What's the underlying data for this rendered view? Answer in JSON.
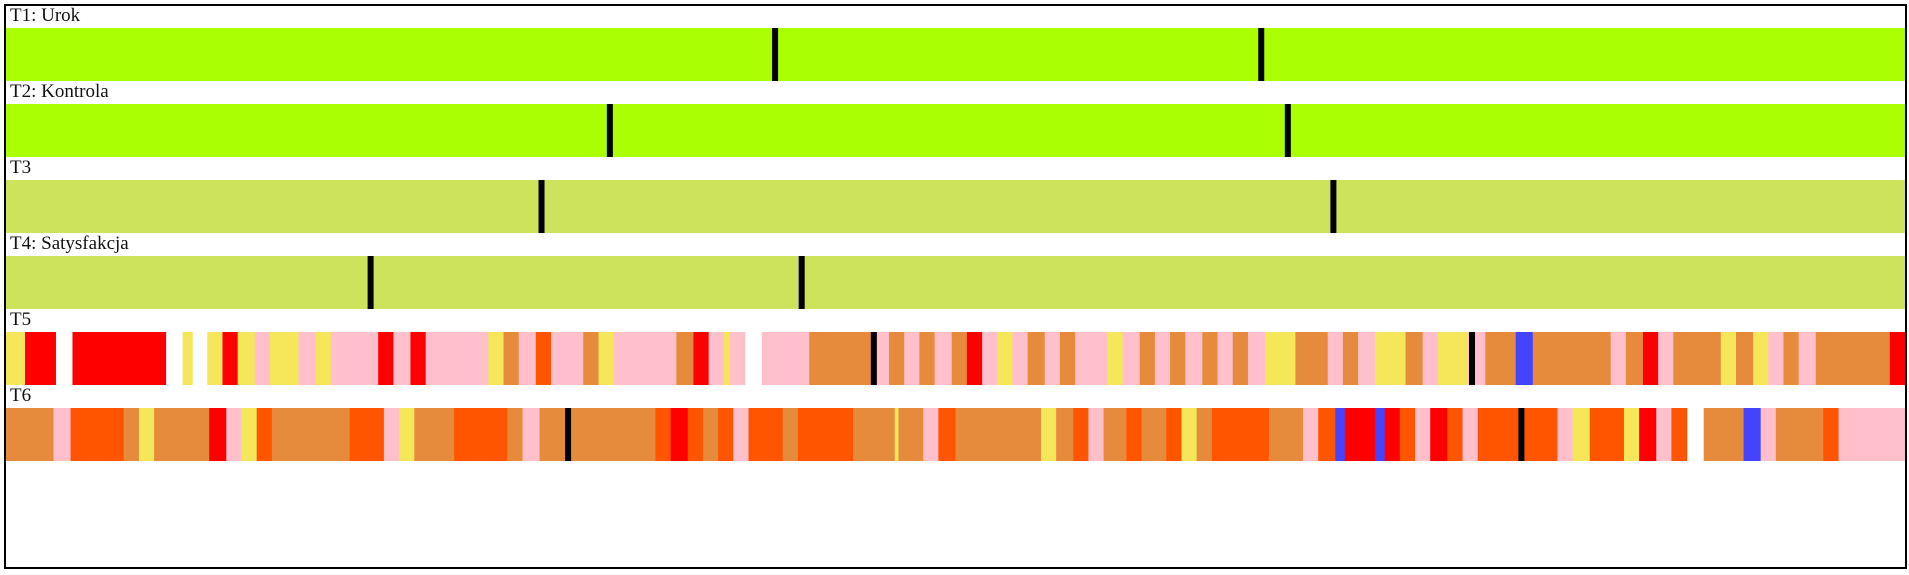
{
  "chart_data": {
    "type": "timeline",
    "x_range": [
      0,
      1
    ],
    "tracks": [
      {
        "id": "T1",
        "label": "T1: Urok",
        "segments": [
          {
            "start": 0,
            "end": 1,
            "color": "#aaff00"
          }
        ],
        "markers": [
          0.405,
          0.661
        ]
      },
      {
        "id": "T2",
        "label": "T2: Kontrola",
        "segments": [
          {
            "start": 0,
            "end": 1,
            "color": "#aaff00"
          }
        ],
        "markers": [
          0.318,
          0.675
        ]
      },
      {
        "id": "T3",
        "label": "T3",
        "segments": [
          {
            "start": 0,
            "end": 1,
            "color": "#cce35b"
          }
        ],
        "markers": [
          0.282,
          0.699
        ]
      },
      {
        "id": "T4",
        "label": "T4: Satysfakcja",
        "segments": [
          {
            "start": 0,
            "end": 1,
            "color": "#cce35b"
          }
        ],
        "markers": [
          0.192,
          0.419
        ]
      },
      {
        "id": "T5",
        "label": "T5",
        "segments": [
          {
            "start": 0.0,
            "end": 0.01,
            "color": "#f5e65a"
          },
          {
            "start": 0.01,
            "end": 0.026,
            "color": "#ff0000"
          },
          {
            "start": 0.035,
            "end": 0.084,
            "color": "#ff0000"
          },
          {
            "start": 0.093,
            "end": 0.098,
            "color": "#f5e65a"
          },
          {
            "start": 0.106,
            "end": 0.114,
            "color": "#f5e65a"
          },
          {
            "start": 0.114,
            "end": 0.122,
            "color": "#ff0000"
          },
          {
            "start": 0.122,
            "end": 0.131,
            "color": "#f5e65a"
          },
          {
            "start": 0.131,
            "end": 0.139,
            "color": "#ffc0cb"
          },
          {
            "start": 0.139,
            "end": 0.154,
            "color": "#f5e65a"
          },
          {
            "start": 0.154,
            "end": 0.163,
            "color": "#ffc0cb"
          },
          {
            "start": 0.163,
            "end": 0.171,
            "color": "#f5e65a"
          },
          {
            "start": 0.171,
            "end": 0.196,
            "color": "#ffc0cb"
          },
          {
            "start": 0.196,
            "end": 0.204,
            "color": "#ff0000"
          },
          {
            "start": 0.204,
            "end": 0.213,
            "color": "#ffc0cb"
          },
          {
            "start": 0.213,
            "end": 0.221,
            "color": "#ff0000"
          },
          {
            "start": 0.221,
            "end": 0.254,
            "color": "#ffc0cb"
          },
          {
            "start": 0.254,
            "end": 0.262,
            "color": "#f5e65a"
          },
          {
            "start": 0.262,
            "end": 0.27,
            "color": "#e68a3c"
          },
          {
            "start": 0.27,
            "end": 0.279,
            "color": "#ffc0cb"
          },
          {
            "start": 0.279,
            "end": 0.287,
            "color": "#ff5500"
          },
          {
            "start": 0.287,
            "end": 0.304,
            "color": "#ffc0cb"
          },
          {
            "start": 0.304,
            "end": 0.312,
            "color": "#e68a3c"
          },
          {
            "start": 0.312,
            "end": 0.32,
            "color": "#f5e65a"
          },
          {
            "start": 0.32,
            "end": 0.353,
            "color": "#ffc0cb"
          },
          {
            "start": 0.353,
            "end": 0.362,
            "color": "#e68a3c"
          },
          {
            "start": 0.362,
            "end": 0.37,
            "color": "#ff0000"
          },
          {
            "start": 0.37,
            "end": 0.378,
            "color": "#ffc0cb"
          },
          {
            "start": 0.378,
            "end": 0.381,
            "color": "#f5e65a"
          },
          {
            "start": 0.381,
            "end": 0.389,
            "color": "#ffc0cb"
          },
          {
            "start": 0.398,
            "end": 0.423,
            "color": "#ffc0cb"
          },
          {
            "start": 0.423,
            "end": 0.456,
            "color": "#e68a3c"
          },
          {
            "start": 0.456,
            "end": 0.465,
            "color": "#ffc0cb"
          },
          {
            "start": 0.465,
            "end": 0.473,
            "color": "#e68a3c"
          },
          {
            "start": 0.473,
            "end": 0.481,
            "color": "#ffc0cb"
          },
          {
            "start": 0.481,
            "end": 0.489,
            "color": "#e68a3c"
          },
          {
            "start": 0.489,
            "end": 0.498,
            "color": "#ffc0cb"
          },
          {
            "start": 0.498,
            "end": 0.506,
            "color": "#e68a3c"
          },
          {
            "start": 0.506,
            "end": 0.514,
            "color": "#ff0000"
          },
          {
            "start": 0.514,
            "end": 0.522,
            "color": "#ffc0cb"
          },
          {
            "start": 0.522,
            "end": 0.53,
            "color": "#f5e65a"
          },
          {
            "start": 0.53,
            "end": 0.538,
            "color": "#ffc0cb"
          },
          {
            "start": 0.538,
            "end": 0.547,
            "color": "#e68a3c"
          },
          {
            "start": 0.547,
            "end": 0.555,
            "color": "#ffc0cb"
          },
          {
            "start": 0.555,
            "end": 0.563,
            "color": "#e68a3c"
          },
          {
            "start": 0.563,
            "end": 0.58,
            "color": "#ffc0cb"
          },
          {
            "start": 0.58,
            "end": 0.588,
            "color": "#f5e65a"
          },
          {
            "start": 0.588,
            "end": 0.597,
            "color": "#ffc0cb"
          },
          {
            "start": 0.597,
            "end": 0.605,
            "color": "#e68a3c"
          },
          {
            "start": 0.605,
            "end": 0.613,
            "color": "#ffc0cb"
          },
          {
            "start": 0.613,
            "end": 0.621,
            "color": "#e68a3c"
          },
          {
            "start": 0.621,
            "end": 0.63,
            "color": "#ffc0cb"
          },
          {
            "start": 0.63,
            "end": 0.638,
            "color": "#e68a3c"
          },
          {
            "start": 0.638,
            "end": 0.646,
            "color": "#ffc0cb"
          },
          {
            "start": 0.646,
            "end": 0.654,
            "color": "#e68a3c"
          },
          {
            "start": 0.654,
            "end": 0.663,
            "color": "#ffc0cb"
          },
          {
            "start": 0.663,
            "end": 0.679,
            "color": "#f5e65a"
          },
          {
            "start": 0.679,
            "end": 0.696,
            "color": "#e68a3c"
          },
          {
            "start": 0.696,
            "end": 0.704,
            "color": "#ffc0cb"
          },
          {
            "start": 0.704,
            "end": 0.712,
            "color": "#e68a3c"
          },
          {
            "start": 0.712,
            "end": 0.721,
            "color": "#ffc0cb"
          },
          {
            "start": 0.721,
            "end": 0.737,
            "color": "#f5e65a"
          },
          {
            "start": 0.737,
            "end": 0.746,
            "color": "#e68a3c"
          },
          {
            "start": 0.746,
            "end": 0.754,
            "color": "#ffc0cb"
          },
          {
            "start": 0.754,
            "end": 0.77,
            "color": "#f5e65a"
          },
          {
            "start": 0.77,
            "end": 0.779,
            "color": "#ffc0cb"
          },
          {
            "start": 0.779,
            "end": 0.795,
            "color": "#e68a3c"
          },
          {
            "start": 0.795,
            "end": 0.804,
            "color": "#4444ff"
          },
          {
            "start": 0.804,
            "end": 0.845,
            "color": "#e68a3c"
          },
          {
            "start": 0.845,
            "end": 0.853,
            "color": "#ffc0cb"
          },
          {
            "start": 0.853,
            "end": 0.862,
            "color": "#e68a3c"
          },
          {
            "start": 0.862,
            "end": 0.87,
            "color": "#ff0000"
          },
          {
            "start": 0.87,
            "end": 0.878,
            "color": "#ffc0cb"
          },
          {
            "start": 0.878,
            "end": 0.903,
            "color": "#e68a3c"
          },
          {
            "start": 0.903,
            "end": 0.911,
            "color": "#f5e65a"
          },
          {
            "start": 0.911,
            "end": 0.92,
            "color": "#e68a3c"
          },
          {
            "start": 0.92,
            "end": 0.928,
            "color": "#f5e65a"
          },
          {
            "start": 0.928,
            "end": 0.936,
            "color": "#ffc0cb"
          },
          {
            "start": 0.936,
            "end": 0.944,
            "color": "#e68a3c"
          },
          {
            "start": 0.944,
            "end": 0.953,
            "color": "#ffc0cb"
          },
          {
            "start": 0.953,
            "end": 0.992,
            "color": "#e68a3c"
          },
          {
            "start": 0.992,
            "end": 1.0,
            "color": "#ff0000"
          }
        ],
        "markers": [
          0.457,
          0.772
        ]
      },
      {
        "id": "T6",
        "label": "T6",
        "segments": [
          {
            "start": 0.0,
            "end": 0.025,
            "color": "#e68a3c"
          },
          {
            "start": 0.025,
            "end": 0.034,
            "color": "#ffc0cb"
          },
          {
            "start": 0.034,
            "end": 0.062,
            "color": "#ff5500"
          },
          {
            "start": 0.062,
            "end": 0.07,
            "color": "#e68a3c"
          },
          {
            "start": 0.07,
            "end": 0.078,
            "color": "#f5e65a"
          },
          {
            "start": 0.078,
            "end": 0.107,
            "color": "#e68a3c"
          },
          {
            "start": 0.107,
            "end": 0.116,
            "color": "#ff0000"
          },
          {
            "start": 0.116,
            "end": 0.124,
            "color": "#ffc0cb"
          },
          {
            "start": 0.124,
            "end": 0.132,
            "color": "#f5e65a"
          },
          {
            "start": 0.132,
            "end": 0.14,
            "color": "#ff5500"
          },
          {
            "start": 0.14,
            "end": 0.181,
            "color": "#e68a3c"
          },
          {
            "start": 0.181,
            "end": 0.199,
            "color": "#ff5500"
          },
          {
            "start": 0.199,
            "end": 0.207,
            "color": "#ffc0cb"
          },
          {
            "start": 0.207,
            "end": 0.215,
            "color": "#f5e65a"
          },
          {
            "start": 0.215,
            "end": 0.236,
            "color": "#e68a3c"
          },
          {
            "start": 0.236,
            "end": 0.264,
            "color": "#ff5500"
          },
          {
            "start": 0.264,
            "end": 0.272,
            "color": "#e68a3c"
          },
          {
            "start": 0.272,
            "end": 0.281,
            "color": "#ffc0cb"
          },
          {
            "start": 0.281,
            "end": 0.297,
            "color": "#e68a3c"
          },
          {
            "start": 0.297,
            "end": 0.342,
            "color": "#e68a3c"
          },
          {
            "start": 0.342,
            "end": 0.35,
            "color": "#ff5500"
          },
          {
            "start": 0.35,
            "end": 0.359,
            "color": "#ff0000"
          },
          {
            "start": 0.359,
            "end": 0.367,
            "color": "#ff5500"
          },
          {
            "start": 0.367,
            "end": 0.375,
            "color": "#e68a3c"
          },
          {
            "start": 0.375,
            "end": 0.383,
            "color": "#ff5500"
          },
          {
            "start": 0.383,
            "end": 0.391,
            "color": "#ffc0cb"
          },
          {
            "start": 0.391,
            "end": 0.409,
            "color": "#ff5500"
          },
          {
            "start": 0.409,
            "end": 0.417,
            "color": "#e68a3c"
          },
          {
            "start": 0.417,
            "end": 0.446,
            "color": "#ff5500"
          },
          {
            "start": 0.446,
            "end": 0.468,
            "color": "#e68a3c"
          },
          {
            "start": 0.468,
            "end": 0.47,
            "color": "#f5e65a"
          },
          {
            "start": 0.47,
            "end": 0.483,
            "color": "#e68a3c"
          },
          {
            "start": 0.483,
            "end": 0.491,
            "color": "#ffc0cb"
          },
          {
            "start": 0.491,
            "end": 0.5,
            "color": "#ff5500"
          },
          {
            "start": 0.5,
            "end": 0.508,
            "color": "#e68a3c"
          },
          {
            "start": 0.508,
            "end": 0.545,
            "color": "#e68a3c"
          },
          {
            "start": 0.545,
            "end": 0.553,
            "color": "#f5e65a"
          },
          {
            "start": 0.553,
            "end": 0.562,
            "color": "#e68a3c"
          },
          {
            "start": 0.562,
            "end": 0.57,
            "color": "#ff5500"
          },
          {
            "start": 0.57,
            "end": 0.578,
            "color": "#ffc0cb"
          },
          {
            "start": 0.578,
            "end": 0.59,
            "color": "#e68a3c"
          },
          {
            "start": 0.59,
            "end": 0.598,
            "color": "#ff5500"
          },
          {
            "start": 0.598,
            "end": 0.611,
            "color": "#e68a3c"
          },
          {
            "start": 0.611,
            "end": 0.619,
            "color": "#ff5500"
          },
          {
            "start": 0.619,
            "end": 0.627,
            "color": "#f5e65a"
          },
          {
            "start": 0.627,
            "end": 0.635,
            "color": "#e68a3c"
          },
          {
            "start": 0.635,
            "end": 0.665,
            "color": "#ff5500"
          },
          {
            "start": 0.665,
            "end": 0.683,
            "color": "#e68a3c"
          },
          {
            "start": 0.683,
            "end": 0.691,
            "color": "#ffc0cb"
          },
          {
            "start": 0.691,
            "end": 0.7,
            "color": "#ff5500"
          },
          {
            "start": 0.7,
            "end": 0.705,
            "color": "#4444ff"
          },
          {
            "start": 0.705,
            "end": 0.721,
            "color": "#ff0000"
          },
          {
            "start": 0.721,
            "end": 0.726,
            "color": "#4444ff"
          },
          {
            "start": 0.726,
            "end": 0.734,
            "color": "#ff0000"
          },
          {
            "start": 0.734,
            "end": 0.742,
            "color": "#ff5500"
          },
          {
            "start": 0.742,
            "end": 0.75,
            "color": "#ffc0cb"
          },
          {
            "start": 0.75,
            "end": 0.759,
            "color": "#ff0000"
          },
          {
            "start": 0.759,
            "end": 0.767,
            "color": "#ff5500"
          },
          {
            "start": 0.767,
            "end": 0.775,
            "color": "#ffc0cb"
          },
          {
            "start": 0.775,
            "end": 0.803,
            "color": "#ff5500"
          },
          {
            "start": 0.803,
            "end": 0.817,
            "color": "#ff5500"
          },
          {
            "start": 0.817,
            "end": 0.825,
            "color": "#ffc0cb"
          },
          {
            "start": 0.825,
            "end": 0.834,
            "color": "#f5e65a"
          },
          {
            "start": 0.834,
            "end": 0.852,
            "color": "#ff5500"
          },
          {
            "start": 0.852,
            "end": 0.86,
            "color": "#f5e65a"
          },
          {
            "start": 0.86,
            "end": 0.869,
            "color": "#ff0000"
          },
          {
            "start": 0.869,
            "end": 0.877,
            "color": "#ffc0cb"
          },
          {
            "start": 0.877,
            "end": 0.885,
            "color": "#ff5500"
          },
          {
            "start": 0.894,
            "end": 0.915,
            "color": "#e68a3c"
          },
          {
            "start": 0.915,
            "end": 0.924,
            "color": "#4444ff"
          },
          {
            "start": 0.924,
            "end": 0.932,
            "color": "#ffc0cb"
          },
          {
            "start": 0.932,
            "end": 0.957,
            "color": "#e68a3c"
          },
          {
            "start": 0.957,
            "end": 0.965,
            "color": "#ff5500"
          },
          {
            "start": 0.965,
            "end": 1.0,
            "color": "#ffc0cb"
          }
        ],
        "markers": [
          0.296,
          0.798
        ]
      }
    ]
  }
}
